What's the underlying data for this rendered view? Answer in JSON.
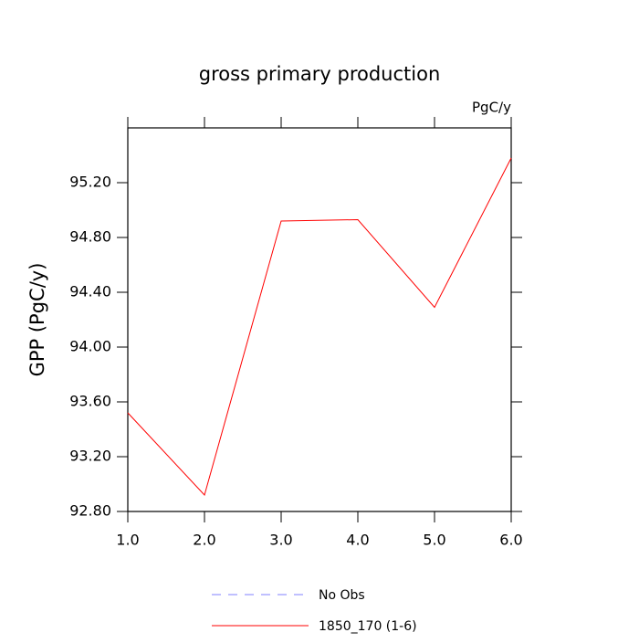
{
  "chart_data": {
    "type": "line",
    "title": "gross primary production",
    "unit_label": "PgC/y",
    "y_label": "GPP  (PgC/y)",
    "x": [
      1,
      2,
      3,
      4,
      5,
      6
    ],
    "series": [
      {
        "name": "No Obs",
        "color": "#8080ff",
        "dashed": true,
        "values": [
          null,
          null,
          null,
          null,
          null,
          null
        ]
      },
      {
        "name": "1850_170 (1-6)",
        "color": "#ff0000",
        "dashed": false,
        "values": [
          93.52,
          92.92,
          94.92,
          94.93,
          94.29,
          95.38
        ]
      }
    ],
    "xlim": [
      1,
      6
    ],
    "xticks": [
      {
        "value": 1,
        "label": "1.0"
      },
      {
        "value": 2,
        "label": "2.0"
      },
      {
        "value": 3,
        "label": "3.0"
      },
      {
        "value": 4,
        "label": "4.0"
      },
      {
        "value": 5,
        "label": "5.0"
      },
      {
        "value": 6,
        "label": "6.0"
      }
    ],
    "ylim": [
      92.8,
      95.6
    ],
    "yticks": [
      {
        "value": 92.8,
        "label": "92.80"
      },
      {
        "value": 93.2,
        "label": "93.20"
      },
      {
        "value": 93.6,
        "label": "93.60"
      },
      {
        "value": 94,
        "label": "94.00"
      },
      {
        "value": 94.4,
        "label": "94.40"
      },
      {
        "value": 94.8,
        "label": "94.80"
      },
      {
        "value": 95.2,
        "label": "95.20"
      }
    ],
    "grid": false
  }
}
